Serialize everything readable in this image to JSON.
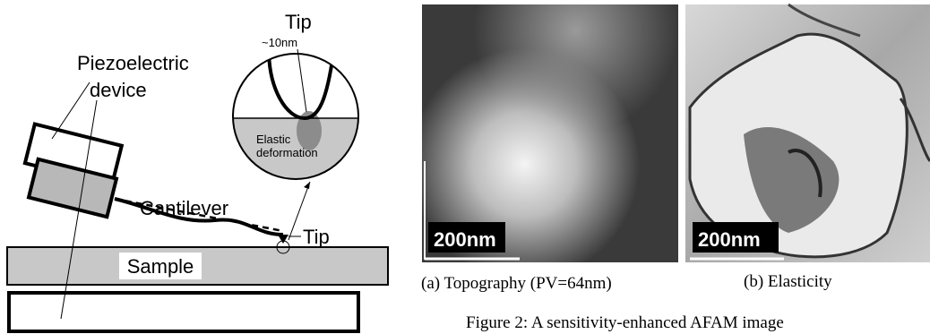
{
  "diagram": {
    "piezo_label": [
      "Piezoelectric",
      "device"
    ],
    "cantilever_label": "Cantilever",
    "tip_label": "Tip",
    "sample_label": "Sample",
    "zoom": {
      "tip_label": "Tip",
      "size_label": "~10nm",
      "deformation_label": [
        "Elastic",
        "deformation"
      ]
    }
  },
  "images": [
    {
      "scale_bar": "200nm",
      "caption": "(a) Topography (PV=64nm)"
    },
    {
      "scale_bar": "200nm",
      "caption": "(b) Elasticity"
    }
  ],
  "figure_caption": "Figure 2: A sensitivity-enhanced AFAM image"
}
